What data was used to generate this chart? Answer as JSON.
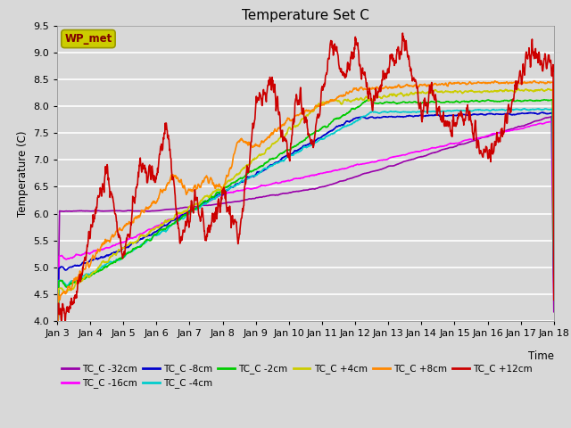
{
  "title": "Temperature Set C",
  "xlabel": "Time",
  "ylabel": "Temperature (C)",
  "ylim": [
    4.0,
    9.5
  ],
  "background_color": "#d8d8d8",
  "plot_bg_color": "#d8d8d8",
  "grid_color": "white",
  "series": {
    "TC_C -32cm": {
      "color": "#9900aa",
      "lw": 1.2
    },
    "TC_C -16cm": {
      "color": "#ff00ff",
      "lw": 1.2
    },
    "TC_C -8cm": {
      "color": "#0000cc",
      "lw": 1.2
    },
    "TC_C -4cm": {
      "color": "#00cccc",
      "lw": 1.2
    },
    "TC_C -2cm": {
      "color": "#00cc00",
      "lw": 1.2
    },
    "TC_C +4cm": {
      "color": "#cccc00",
      "lw": 1.2
    },
    "TC_C +8cm": {
      "color": "#ff8800",
      "lw": 1.2
    },
    "TC_C +12cm": {
      "color": "#cc0000",
      "lw": 1.2
    }
  },
  "xtick_labels": [
    "Jan 3",
    "Jan 4",
    "Jan 5",
    "Jan 6",
    "Jan 7",
    "Jan 8",
    "Jan 9",
    "Jan 10",
    "Jan 11",
    "Jan 12",
    "Jan 13",
    "Jan 14",
    "Jan 15",
    "Jan 16",
    "Jan 17",
    "Jan 18"
  ],
  "wp_met_box_color": "#cccc00",
  "wp_met_text_color": "#800000"
}
